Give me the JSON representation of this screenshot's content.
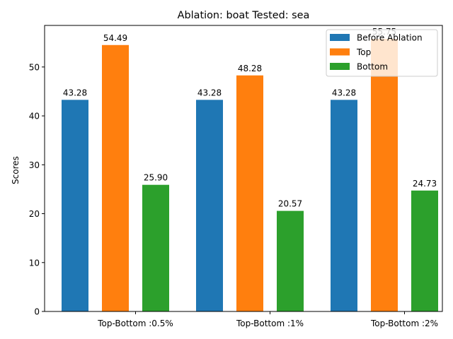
{
  "chart_data": {
    "type": "bar",
    "title": "Ablation: boat Tested: sea",
    "xlabel": "",
    "ylabel": "Scores",
    "categories": [
      "Top-Bottom :0.5%",
      "Top-Bottom :1%",
      "Top-Bottom :2%"
    ],
    "series": [
      {
        "name": "Before Ablation",
        "color": "#1f77b4",
        "values": [
          43.28,
          43.28,
          43.28
        ],
        "labels": [
          "43.28",
          "43.28",
          "43.28"
        ]
      },
      {
        "name": "Top",
        "color": "#ff7f0e",
        "values": [
          54.49,
          48.28,
          55.75
        ],
        "labels": [
          "54.49",
          "48.28",
          "55.75"
        ]
      },
      {
        "name": "Bottom",
        "color": "#2ca02c",
        "values": [
          25.9,
          20.57,
          24.73
        ],
        "labels": [
          "25.90",
          "20.57",
          "24.73"
        ]
      }
    ],
    "ylim": [
      0,
      58.5
    ],
    "yticks": [
      0,
      10,
      20,
      30,
      40,
      50
    ],
    "grid": false,
    "legend_position": "top-right"
  }
}
